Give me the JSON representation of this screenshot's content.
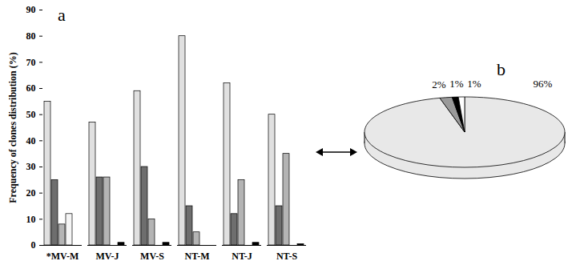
{
  "chart_data": [
    {
      "type": "bar",
      "annotation": "a",
      "ylabel": "Frequency of clones distribution (%)",
      "categories": [
        "*MV-M",
        "MV-J",
        "MV-S",
        "NT-M",
        "NT-J",
        "NT-S"
      ],
      "series": [
        {
          "color": "#e0e0e0",
          "values": [
            55,
            47,
            59,
            80,
            62,
            50
          ]
        },
        {
          "color": "#6e6e6e",
          "values": [
            25,
            26,
            30,
            15,
            12,
            15
          ]
        },
        {
          "color": "#b4b4b4",
          "values": [
            8,
            26,
            10,
            5,
            25,
            35
          ]
        },
        {
          "color": "#f5f5f5",
          "values": [
            12,
            0,
            0,
            0,
            0,
            0
          ]
        },
        {
          "color": "#000000",
          "values": [
            0,
            1,
            1,
            0,
            1,
            0.5
          ]
        }
      ],
      "ylim": [
        0,
        90
      ],
      "yticks": [
        0,
        10,
        20,
        30,
        40,
        50,
        60,
        70,
        80,
        90
      ]
    },
    {
      "type": "pie",
      "annotation": "b",
      "values": [
        96,
        2,
        1,
        1
      ],
      "value_labels": [
        "96%",
        "2%",
        "1%",
        "1%"
      ],
      "colors": [
        "#e8e8e8",
        "#9a9a9a",
        "#000000",
        "#ffffff"
      ],
      "data_labels": true
    }
  ]
}
